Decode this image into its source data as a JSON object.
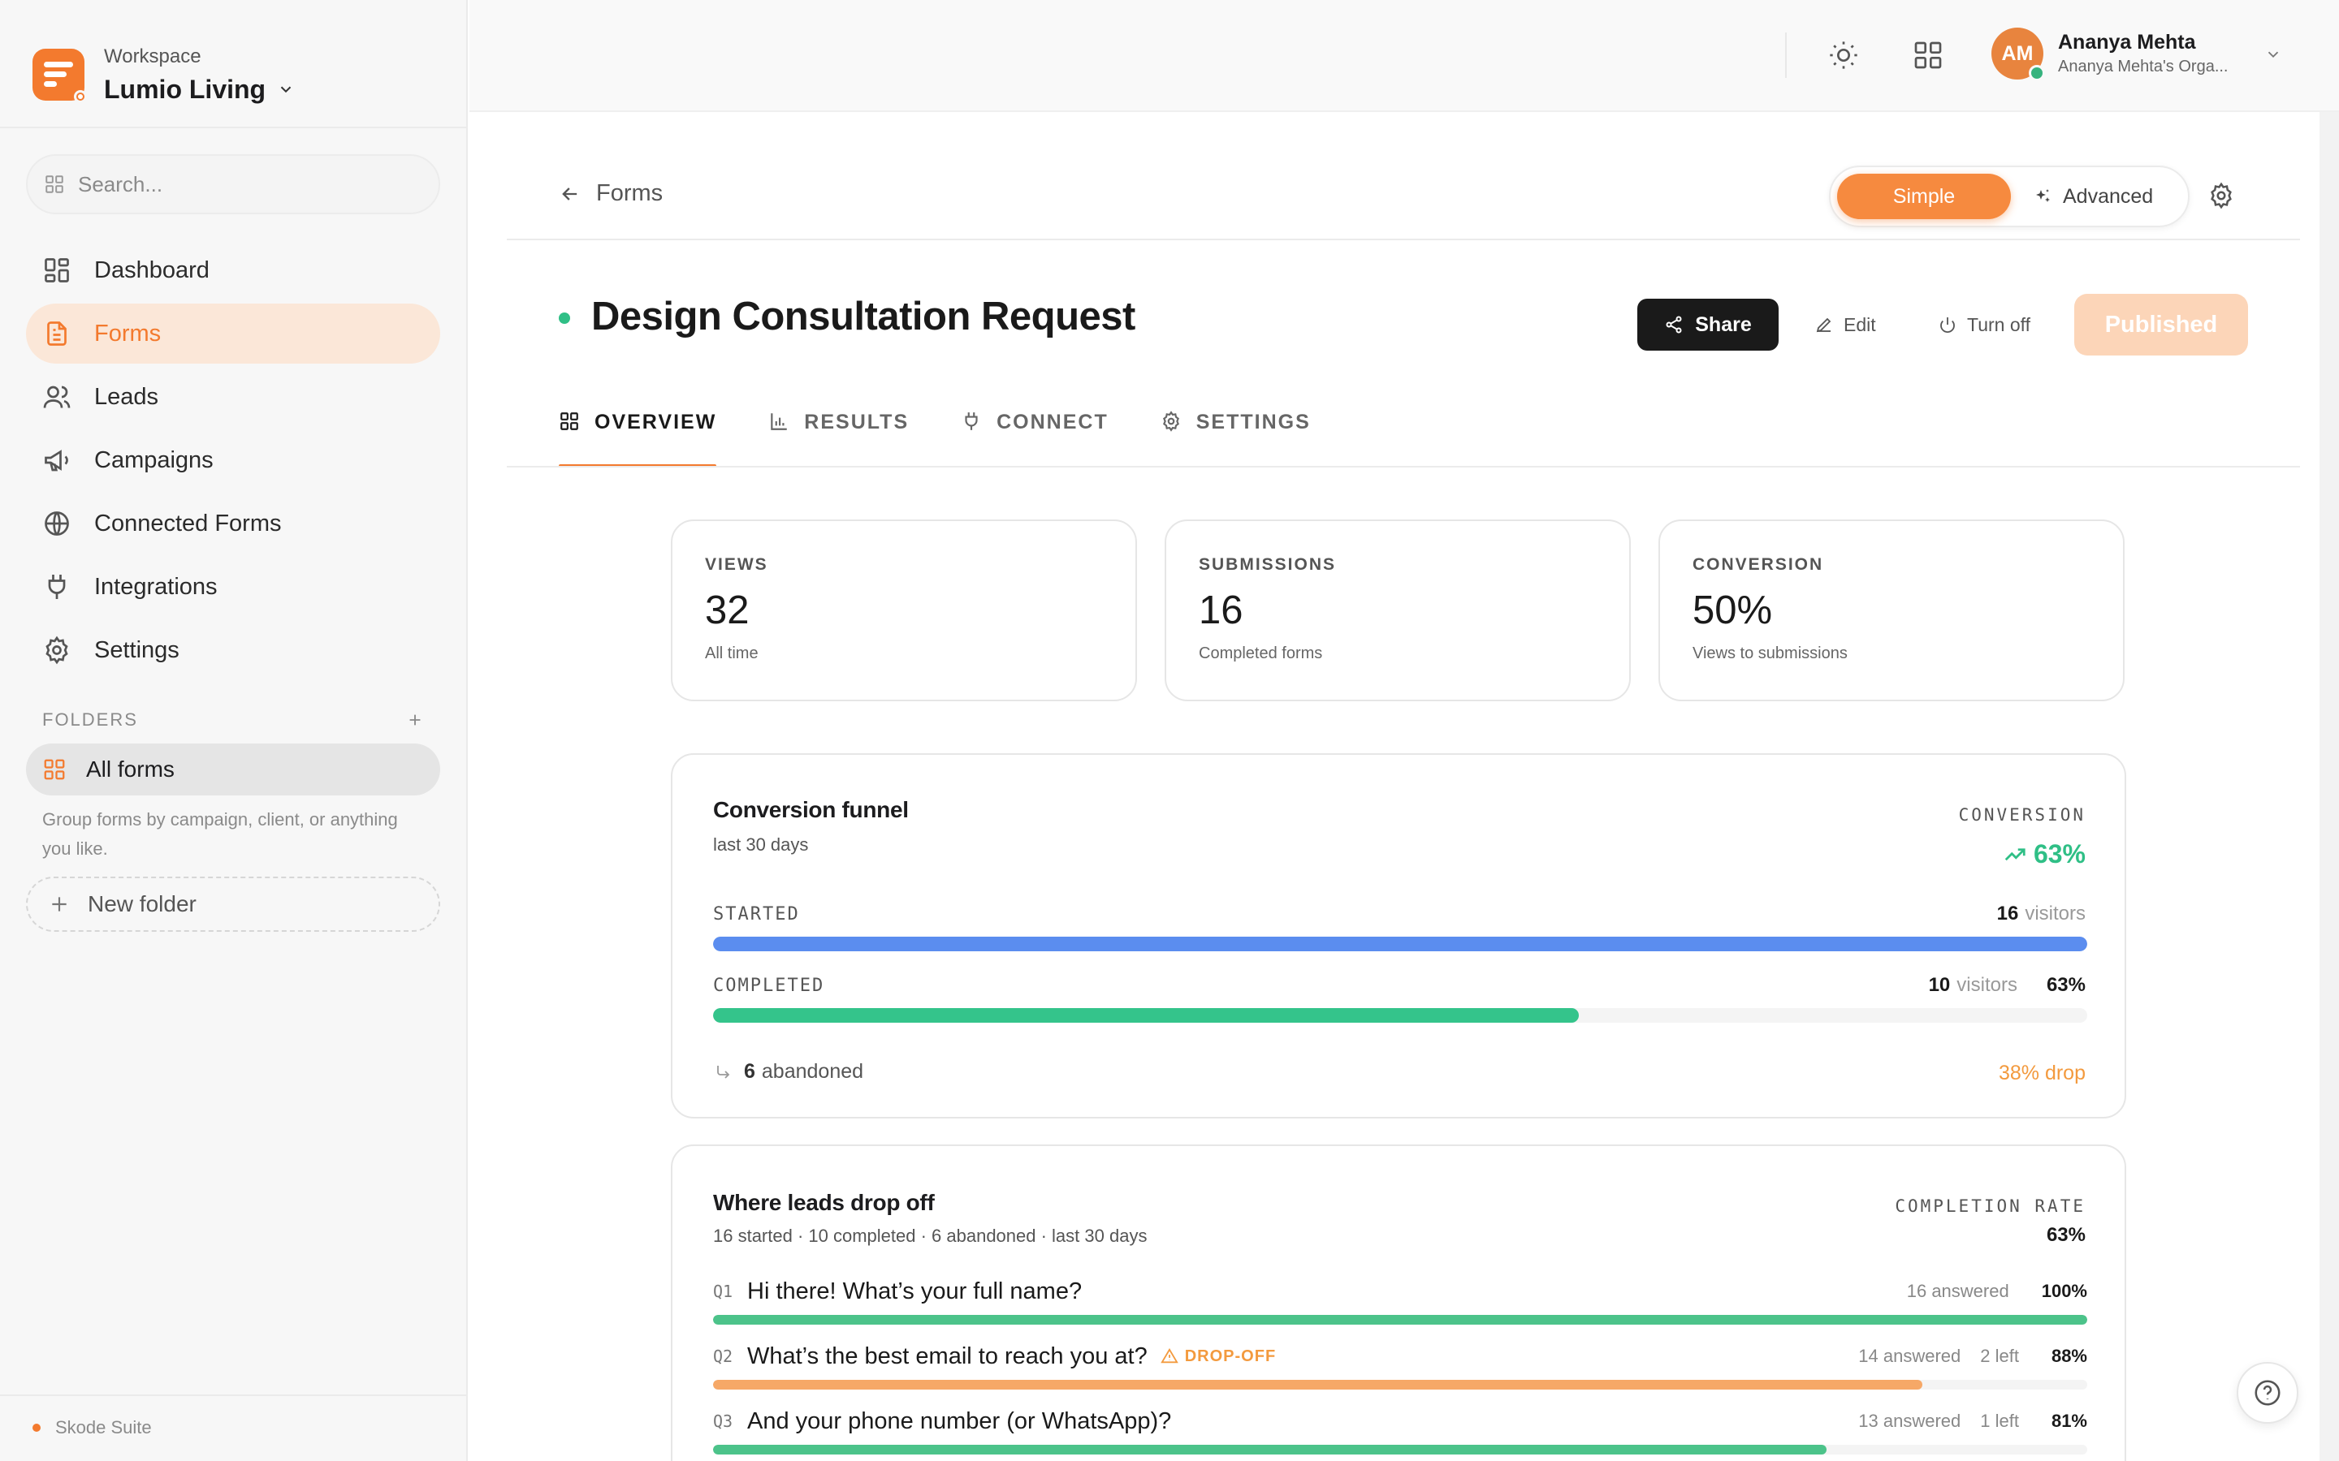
{
  "workspace": {
    "label": "Workspace",
    "name": "Lumio Living"
  },
  "search": {
    "placeholder": "Search..."
  },
  "nav": [
    {
      "label": "Dashboard",
      "icon": "dashboard-icon"
    },
    {
      "label": "Forms",
      "icon": "document-icon",
      "active": true
    },
    {
      "label": "Leads",
      "icon": "users-icon"
    },
    {
      "label": "Campaigns",
      "icon": "megaphone-icon"
    },
    {
      "label": "Connected Forms",
      "icon": "globe-icon"
    },
    {
      "label": "Integrations",
      "icon": "plug-icon"
    },
    {
      "label": "Settings",
      "icon": "gear-icon"
    }
  ],
  "folders": {
    "heading": "FOLDERS",
    "all_forms": "All forms",
    "hint": "Group forms by campaign, client, or anything you like.",
    "new_folder": "New folder"
  },
  "footer": {
    "brand": "Skode Suite"
  },
  "user": {
    "initials": "AM",
    "name": "Ananya Mehta",
    "org": "Ananya Mehta's Orga..."
  },
  "breadcrumb": {
    "back_label": "Forms"
  },
  "mode": {
    "simple": "Simple",
    "advanced": "Advanced"
  },
  "form": {
    "title": "Design Consultation Request",
    "status_color": "#2fbf86",
    "actions": {
      "share": "Share",
      "edit": "Edit",
      "turn_off": "Turn off",
      "published": "Published"
    }
  },
  "tabs": [
    {
      "label": "OVERVIEW",
      "icon": "grid-icon",
      "active": true
    },
    {
      "label": "RESULTS",
      "icon": "bar-chart-icon"
    },
    {
      "label": "CONNECT",
      "icon": "plug-icon"
    },
    {
      "label": "SETTINGS",
      "icon": "gear-icon"
    }
  ],
  "stats": [
    {
      "label": "VIEWS",
      "value": "32",
      "sub": "All time"
    },
    {
      "label": "SUBMISSIONS",
      "value": "16",
      "sub": "Completed forms"
    },
    {
      "label": "CONVERSION",
      "value": "50%",
      "sub": "Views to submissions"
    }
  ],
  "funnel": {
    "title": "Conversion funnel",
    "period": "last 30 days",
    "conversion_label": "CONVERSION",
    "conversion_value": "63%",
    "started": {
      "label": "STARTED",
      "count": "16",
      "unit": "visitors",
      "fraction": 1.0,
      "color": "#5b8def"
    },
    "completed": {
      "label": "COMPLETED",
      "count": "10",
      "unit": "visitors",
      "pct": "63%",
      "fraction": 0.63,
      "color": "#34c48b"
    },
    "abandoned_count": "6",
    "abandoned_label": "abandoned",
    "drop": "38% drop"
  },
  "dropoff": {
    "title": "Where leads drop off",
    "summary": "16 started · 10 completed · 6 abandoned · last 30 days",
    "rate_label": "COMPLETION RATE",
    "rate_value": "63%",
    "questions": [
      {
        "num": "Q1",
        "text": "Hi there! What’s your full name?",
        "answered": "16 answered",
        "left": "",
        "pct": "100%",
        "fraction": 1.0,
        "color": "#4cc38a",
        "flag": ""
      },
      {
        "num": "Q2",
        "text": "What’s the best email to reach you at?",
        "answered": "14 answered",
        "left": "2 left",
        "pct": "88%",
        "fraction": 0.88,
        "color": "#f6a867",
        "flag": "DROP-OFF"
      },
      {
        "num": "Q3",
        "text": "And your phone number (or WhatsApp)?",
        "answered": "13 answered",
        "left": "1 left",
        "pct": "81%",
        "fraction": 0.81,
        "color": "#4cc38a",
        "flag": ""
      }
    ]
  }
}
